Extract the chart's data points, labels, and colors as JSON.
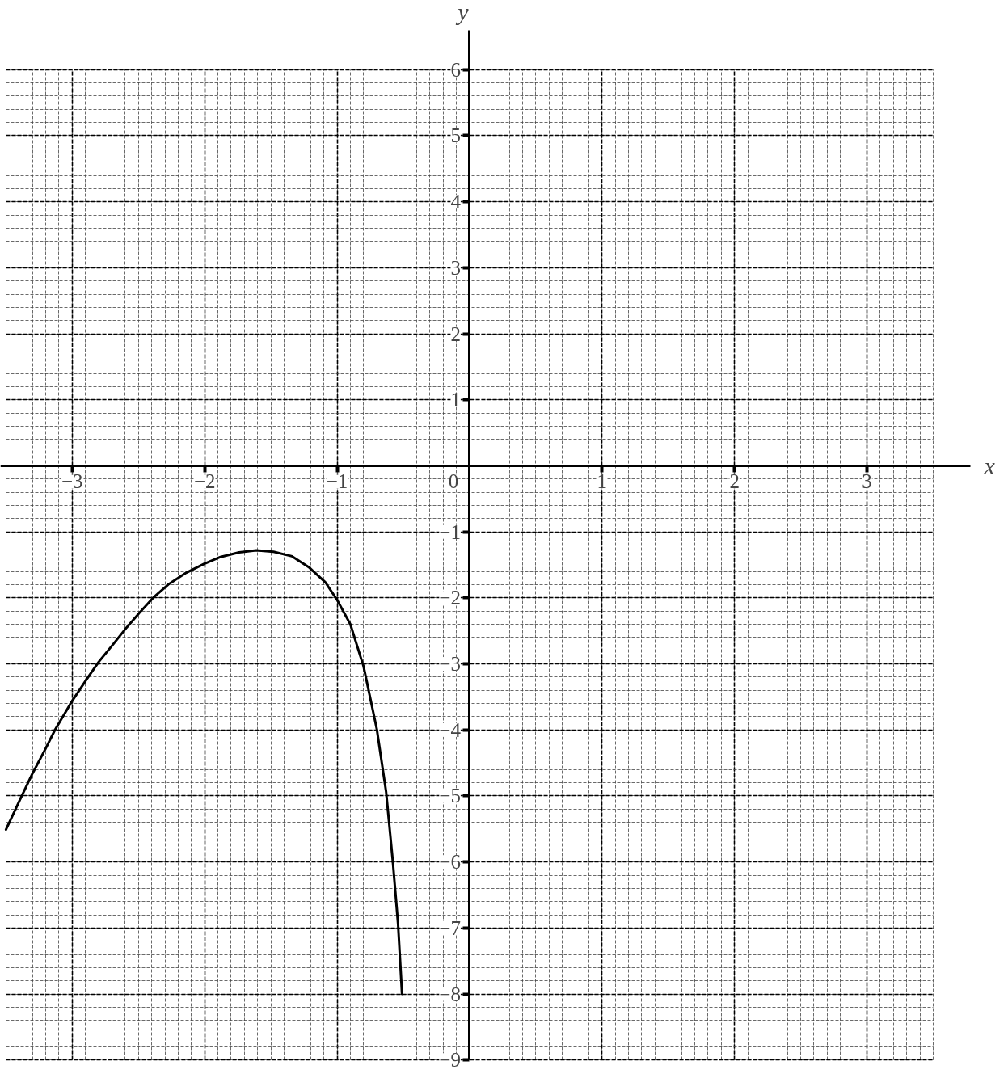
{
  "chart_data": {
    "type": "line",
    "xlabel": "x",
    "ylabel": "y",
    "xlim": [
      -3.5,
      3.5
    ],
    "ylim": [
      -9,
      6
    ],
    "xticks": [
      {
        "value": -3,
        "label": "−3"
      },
      {
        "value": -2,
        "label": "−2"
      },
      {
        "value": -1,
        "label": "−1"
      },
      1,
      2,
      3
    ],
    "yticks": [
      {
        "value": -9,
        "label": "−9"
      },
      {
        "value": -8,
        "label": "−8"
      },
      {
        "value": -7,
        "label": "−7"
      },
      {
        "value": -6,
        "label": "−6"
      },
      {
        "value": -5,
        "label": "−5"
      },
      {
        "value": -4,
        "label": "−4"
      },
      {
        "value": -3,
        "label": "−3"
      },
      {
        "value": -2,
        "label": "−2"
      },
      {
        "value": -1,
        "label": "−1"
      },
      1,
      2,
      3,
      4,
      5,
      6
    ],
    "annotations": [
      "0"
    ],
    "grid": true,
    "line_style": "solid",
    "color": "#000000",
    "x": [
      -3.5,
      -3.4,
      -3.3,
      -3.2,
      -3.13,
      -3.0,
      -2.89,
      -2.8,
      -2.69,
      -2.59,
      -2.49,
      -2.39,
      -2.27,
      -2.14,
      -2.0,
      -1.88,
      -1.74,
      -1.61,
      -1.48,
      -1.34,
      -1.21,
      -1.09,
      -1.0,
      -0.9,
      -0.8,
      -0.7,
      -0.63,
      -0.58,
      -0.54,
      -0.51
    ],
    "values": [
      -5.51,
      -5.08,
      -4.66,
      -4.28,
      -4.0,
      -3.56,
      -3.23,
      -2.97,
      -2.7,
      -2.45,
      -2.22,
      -2.0,
      -1.79,
      -1.62,
      -1.48,
      -1.38,
      -1.31,
      -1.28,
      -1.3,
      -1.37,
      -1.54,
      -1.76,
      -2.03,
      -2.4,
      -3.04,
      -3.99,
      -4.94,
      -5.98,
      -6.94,
      -8.0
    ]
  }
}
